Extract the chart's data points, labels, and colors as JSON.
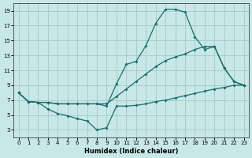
{
  "xlabel": "Humidex (Indice chaleur)",
  "background_color": "#c8e8e8",
  "grid_color": "#a8cccc",
  "line_color": "#1a6b6b",
  "xlim": [
    -0.5,
    23.5
  ],
  "ylim": [
    2.0,
    20.0
  ],
  "yticks": [
    3,
    5,
    7,
    9,
    11,
    13,
    15,
    17,
    19
  ],
  "xticks": [
    0,
    1,
    2,
    3,
    4,
    5,
    6,
    7,
    8,
    9,
    10,
    11,
    12,
    13,
    14,
    15,
    16,
    17,
    18,
    19,
    20,
    21,
    22,
    23
  ],
  "line1_x": [
    0,
    1,
    2,
    3,
    4,
    5,
    6,
    7,
    8,
    9,
    10,
    11,
    12,
    13,
    14,
    15,
    16,
    17,
    18,
    19,
    20,
    21,
    22,
    23
  ],
  "line1_y": [
    8.0,
    6.8,
    6.7,
    5.8,
    5.2,
    4.9,
    4.5,
    4.2,
    3.0,
    3.3,
    6.2,
    6.2,
    6.3,
    6.5,
    6.8,
    7.0,
    7.3,
    7.6,
    7.9,
    8.2,
    8.5,
    8.7,
    9.0,
    9.0
  ],
  "line2_x": [
    0,
    1,
    2,
    3,
    4,
    5,
    6,
    7,
    8,
    9,
    10,
    11,
    12,
    13,
    14,
    15,
    16,
    17,
    18,
    19,
    20,
    21,
    22,
    23
  ],
  "line2_y": [
    8.0,
    6.8,
    6.7,
    6.7,
    6.5,
    6.5,
    6.5,
    6.5,
    6.5,
    6.2,
    9.2,
    11.8,
    12.2,
    14.3,
    17.3,
    19.2,
    19.2,
    18.8,
    15.5,
    13.8,
    14.2,
    11.3,
    9.5,
    9.0
  ],
  "line3_x": [
    0,
    1,
    2,
    3,
    4,
    5,
    6,
    7,
    8,
    9,
    10,
    11,
    12,
    13,
    14,
    15,
    16,
    17,
    18,
    19,
    20,
    21,
    22,
    23
  ],
  "line3_y": [
    8.0,
    6.8,
    6.7,
    6.7,
    6.5,
    6.5,
    6.5,
    6.5,
    6.5,
    6.5,
    7.5,
    8.5,
    9.5,
    10.5,
    11.5,
    12.3,
    12.8,
    13.2,
    13.8,
    14.2,
    14.2,
    11.3,
    9.5,
    9.0
  ],
  "marker": "D",
  "marker_size": 2.0,
  "linewidth": 0.9
}
